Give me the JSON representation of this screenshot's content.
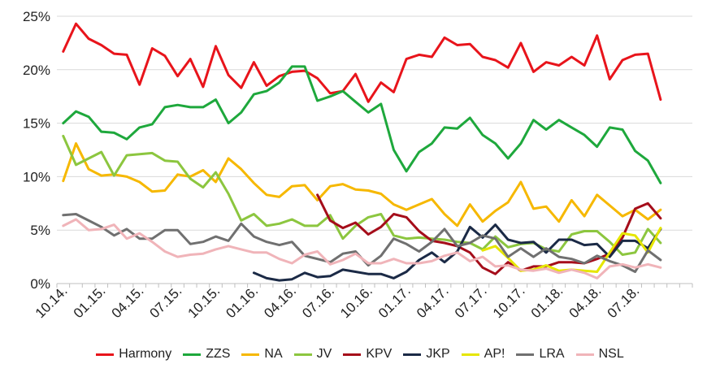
{
  "chart_data": {
    "type": "line",
    "title": "",
    "xlabel": "",
    "ylabel": "",
    "ylim": [
      0,
      25
    ],
    "y_ticks": [
      "0%",
      "5%",
      "10%",
      "15%",
      "20%",
      "25%"
    ],
    "x_ticks": [
      "10.14.",
      "01.15.",
      "04.15.",
      "07.15.",
      "10.15.",
      "01.16.",
      "04.16.",
      "07.16.",
      "10.16.",
      "01.17.",
      "04.17.",
      "07.17.",
      "10.17.",
      "01.18.",
      "04.18.",
      "07.18."
    ],
    "x_count": 50,
    "grid": true,
    "legend_position": "bottom",
    "series": [
      {
        "name": "Harmony",
        "color": "#e8141b",
        "start": 0,
        "values": [
          21.7,
          24.3,
          22.9,
          22.3,
          21.5,
          21.4,
          18.6,
          22.0,
          21.3,
          19.4,
          21.0,
          18.4,
          22.2,
          19.5,
          18.3,
          20.7,
          18.5,
          19.4,
          19.8,
          19.9,
          19.2,
          17.8,
          18.0,
          19.6,
          17.0,
          18.8,
          17.9,
          21.0,
          21.4,
          21.2,
          23.0,
          22.3,
          22.4,
          21.2,
          20.9,
          20.2,
          22.5,
          19.8,
          20.7,
          20.4,
          21.2,
          20.4,
          23.2,
          19.1,
          20.9,
          21.4,
          21.5,
          17.2
        ]
      },
      {
        "name": "ZZS",
        "color": "#1ea83c",
        "start": 0,
        "values": [
          15.0,
          16.1,
          15.6,
          14.2,
          14.1,
          13.5,
          14.6,
          14.9,
          16.5,
          16.7,
          16.5,
          16.5,
          17.2,
          15.0,
          16.0,
          17.7,
          18.0,
          18.8,
          20.3,
          20.3,
          17.1,
          17.5,
          18.0,
          17.0,
          16.0,
          16.8,
          12.5,
          10.5,
          12.3,
          13.1,
          14.6,
          14.5,
          15.5,
          13.9,
          13.1,
          11.7,
          13.1,
          15.3,
          14.4,
          15.3,
          14.6,
          13.9,
          12.8,
          14.6,
          14.4,
          12.4,
          11.5,
          9.4
        ]
      },
      {
        "name": "NA",
        "color": "#f6b800",
        "start": 0,
        "values": [
          9.6,
          13.1,
          10.7,
          10.1,
          10.2,
          10.0,
          9.5,
          8.6,
          8.7,
          10.2,
          10.0,
          10.6,
          9.5,
          11.7,
          10.7,
          9.4,
          8.3,
          8.1,
          9.1,
          9.2,
          7.8,
          9.1,
          9.3,
          8.8,
          8.7,
          8.4,
          7.4,
          6.9,
          7.4,
          7.9,
          6.5,
          5.4,
          7.4,
          5.8,
          6.8,
          7.6,
          9.5,
          7.0,
          7.2,
          5.8,
          7.8,
          6.3,
          8.3,
          7.3,
          6.3,
          6.9,
          6.0,
          6.9
        ]
      },
      {
        "name": "JV",
        "color": "#8cc63f",
        "start": 0,
        "values": [
          13.8,
          11.1,
          11.7,
          12.3,
          10.1,
          12.0,
          12.1,
          12.2,
          11.5,
          11.4,
          9.8,
          9.0,
          10.4,
          8.4,
          5.9,
          6.5,
          5.4,
          5.6,
          6.0,
          5.4,
          5.4,
          6.4,
          4.2,
          5.4,
          6.2,
          6.5,
          4.5,
          4.2,
          4.3,
          4.2,
          4.1,
          3.9,
          3.8,
          3.2,
          4.4,
          3.4,
          3.7,
          3.8,
          3.2,
          3.0,
          4.6,
          4.9,
          4.9,
          3.9,
          2.7,
          2.9,
          5.1,
          3.8
        ]
      },
      {
        "name": "KPV",
        "color": "#a50d1a",
        "start": 20,
        "values": [
          8.3,
          5.9,
          5.2,
          5.7,
          4.6,
          5.3,
          6.5,
          6.2,
          4.9,
          4.0,
          3.8,
          3.5,
          2.9,
          1.5,
          0.9,
          2.0,
          1.2,
          1.6,
          1.6,
          2.0,
          2.0,
          1.9,
          2.3,
          2.8,
          4.3,
          7.0,
          7.5,
          6.1
        ]
      },
      {
        "name": "JKP",
        "color": "#1b2a46",
        "start": 15,
        "values": [
          1.0,
          0.5,
          0.3,
          0.4,
          1.0,
          0.6,
          0.7,
          1.3,
          1.1,
          0.9,
          0.9,
          0.5,
          1.1,
          2.2,
          2.9,
          2.0,
          3.0,
          5.3,
          4.3,
          5.5,
          4.1,
          3.8,
          3.9,
          2.9,
          4.1,
          4.1,
          3.6,
          3.7,
          2.5,
          4.0,
          4.0,
          3.3,
          5.1
        ]
      },
      {
        "name": "AP!",
        "color": "#e6e600",
        "start": 33,
        "values": [
          3.1,
          3.5,
          2.4,
          1.2,
          1.3,
          1.7,
          1.2,
          1.3,
          1.2,
          1.1,
          2.9,
          4.7,
          4.5,
          2.9,
          5.2
        ]
      },
      {
        "name": "LRA",
        "color": "#707070",
        "start": 0,
        "values": [
          6.4,
          6.5,
          5.9,
          5.3,
          4.5,
          5.1,
          4.2,
          4.2,
          5.0,
          5.0,
          3.7,
          3.9,
          4.4,
          4.0,
          5.6,
          4.4,
          3.9,
          3.6,
          3.9,
          2.6,
          2.3,
          2.0,
          2.8,
          3.0,
          1.7,
          2.6,
          4.2,
          3.7,
          3.0,
          3.9,
          5.1,
          3.5,
          3.8,
          4.5,
          4.2,
          2.5,
          3.3,
          2.5,
          3.3,
          2.5,
          2.3,
          1.9,
          2.6,
          2.1,
          1.7,
          1.1,
          3.1,
          2.2
        ]
      },
      {
        "name": "NSL",
        "color": "#f0b4b9",
        "start": 0,
        "values": [
          5.4,
          6.0,
          5.0,
          5.1,
          5.5,
          4.2,
          4.7,
          3.9,
          3.0,
          2.5,
          2.7,
          2.8,
          3.2,
          3.5,
          3.2,
          2.9,
          2.9,
          2.3,
          1.9,
          2.7,
          3.0,
          1.8,
          2.2,
          2.8,
          1.9,
          1.9,
          2.3,
          1.9,
          1.9,
          2.1,
          2.6,
          2.9,
          2.1,
          2.5,
          1.6,
          1.7,
          1.3,
          1.2,
          1.4,
          1.0,
          1.3,
          1.0,
          0.5,
          1.6,
          1.8,
          1.5,
          1.8,
          1.5
        ]
      }
    ]
  }
}
